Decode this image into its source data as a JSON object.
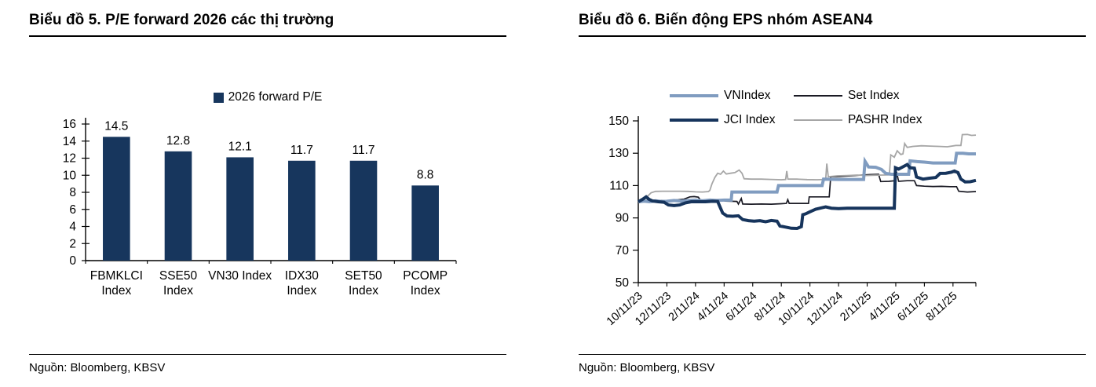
{
  "page": {
    "background": "#ffffff"
  },
  "chart_data": [
    {
      "type": "bar",
      "title": "Biểu đồ 5. P/E forward 2026 các thị trường",
      "source": "Nguồn: Bloomberg, KBSV",
      "legend": [
        "2026 forward P/E"
      ],
      "legend_position": "top",
      "bar_color": "#17365d",
      "grid": false,
      "ylim": [
        0,
        16
      ],
      "yticks": [
        0,
        2,
        4,
        6,
        8,
        10,
        12,
        14,
        16
      ],
      "categories": [
        "FBMKLCI\nIndex",
        "SSE50\nIndex",
        "VN30 Index",
        "IDX30\nIndex",
        "SET50\nIndex",
        "PCOMP\nIndex"
      ],
      "values": [
        14.5,
        12.8,
        12.1,
        11.7,
        11.7,
        8.8
      ],
      "xlabel": "",
      "ylabel": ""
    },
    {
      "type": "line",
      "title": "Biểu đồ 6. Biến động EPS nhóm ASEAN4",
      "source": "Nguồn: Bloomberg, KBSV",
      "legend_position": "top",
      "grid": false,
      "ylim": [
        50,
        150
      ],
      "yticks": [
        50,
        70,
        90,
        110,
        130,
        150
      ],
      "xlim": [
        0,
        23.6
      ],
      "x_unit": "months since 10/11/23",
      "xticks": [
        {
          "t": 0,
          "label": "10/11/23"
        },
        {
          "t": 2,
          "label": "12/11/23"
        },
        {
          "t": 4,
          "label": "2/11/24"
        },
        {
          "t": 6,
          "label": "4/11/24"
        },
        {
          "t": 8,
          "label": "6/11/24"
        },
        {
          "t": 10,
          "label": "8/11/24"
        },
        {
          "t": 12,
          "label": "10/11/24"
        },
        {
          "t": 14,
          "label": "12/11/24"
        },
        {
          "t": 16,
          "label": "2/11/25"
        },
        {
          "t": 18,
          "label": "4/11/25"
        },
        {
          "t": 20,
          "label": "6/11/25"
        },
        {
          "t": 22,
          "label": "8/11/25"
        }
      ],
      "series": [
        {
          "name": "VNIndex",
          "color": "#809cc0",
          "width": 4,
          "points": [
            [
              0,
              100
            ],
            [
              0.4,
              100.4
            ],
            [
              0.8,
              100
            ],
            [
              1.2,
              100.6
            ],
            [
              1.6,
              100.2
            ],
            [
              2,
              100.3
            ],
            [
              2.5,
              100.8
            ],
            [
              3,
              100.4
            ],
            [
              3.5,
              100.8
            ],
            [
              4,
              101
            ],
            [
              4.5,
              100.6
            ],
            [
              5,
              101
            ],
            [
              5.5,
              100.8
            ],
            [
              6,
              101
            ],
            [
              6.5,
              101
            ],
            [
              6.55,
              106
            ],
            [
              7.5,
              106
            ],
            [
              8.5,
              106
            ],
            [
              9.7,
              106
            ],
            [
              9.8,
              110
            ],
            [
              11,
              110
            ],
            [
              12,
              110
            ],
            [
              12.85,
              110
            ],
            [
              12.95,
              114
            ],
            [
              14,
              113.8
            ],
            [
              15,
              113.8
            ],
            [
              15.75,
              113.8
            ],
            [
              15.85,
              125
            ],
            [
              16.1,
              121.5
            ],
            [
              16.6,
              121.3
            ],
            [
              17,
              120
            ],
            [
              17.3,
              117.5
            ],
            [
              17.7,
              117
            ],
            [
              18.3,
              117
            ],
            [
              18.9,
              117
            ],
            [
              19,
              125.3
            ],
            [
              19.5,
              124.8
            ],
            [
              20,
              124.5
            ],
            [
              20.6,
              124
            ],
            [
              21.2,
              124
            ],
            [
              21.8,
              124
            ],
            [
              22.15,
              124
            ],
            [
              22.25,
              130
            ],
            [
              22.7,
              130
            ],
            [
              23.1,
              129.6
            ],
            [
              23.6,
              129.6
            ]
          ]
        },
        {
          "name": "Set Index",
          "color": "#1a1a24",
          "width": 1.7,
          "points": [
            [
              0,
              100
            ],
            [
              0.4,
              100.6
            ],
            [
              0.8,
              101
            ],
            [
              1.2,
              100.6
            ],
            [
              1.6,
              100.8
            ],
            [
              2,
              100.5
            ],
            [
              2.4,
              101
            ],
            [
              2.8,
              101.2
            ],
            [
              3.2,
              101.6
            ],
            [
              3.6,
              103
            ],
            [
              3.9,
              103.2
            ],
            [
              4.2,
              102.8
            ],
            [
              4.4,
              100.3
            ],
            [
              4.9,
              100.8
            ],
            [
              5.3,
              101.2
            ],
            [
              5.7,
              101
            ],
            [
              6.1,
              100.4
            ],
            [
              6.5,
              100.3
            ],
            [
              6.9,
              100.2
            ],
            [
              7,
              98.6
            ],
            [
              7.2,
              102
            ],
            [
              7.3,
              98.6
            ],
            [
              7.9,
              98.5
            ],
            [
              8.6,
              98.6
            ],
            [
              9.3,
              98.5
            ],
            [
              10,
              98.8
            ],
            [
              10.35,
              99
            ],
            [
              10.45,
              101.3
            ],
            [
              10.55,
              99
            ],
            [
              11.2,
              99
            ],
            [
              11.9,
              99
            ],
            [
              11.95,
              103
            ],
            [
              12.6,
              103
            ],
            [
              13.35,
              103
            ],
            [
              13.45,
              115.5
            ],
            [
              14.1,
              115.6
            ],
            [
              14.8,
              116
            ],
            [
              15.5,
              116.4
            ],
            [
              16.2,
              116.8
            ],
            [
              16.8,
              117
            ],
            [
              16.95,
              112.5
            ],
            [
              17.5,
              112.6
            ],
            [
              17.95,
              113
            ],
            [
              18.05,
              118.5
            ],
            [
              18.2,
              112.6
            ],
            [
              18.8,
              113
            ],
            [
              19.3,
              113
            ],
            [
              19.45,
              110
            ],
            [
              20,
              109.6
            ],
            [
              20.6,
              109.4
            ],
            [
              21.2,
              109.5
            ],
            [
              21.8,
              109.3
            ],
            [
              22.25,
              109.3
            ],
            [
              22.4,
              106.5
            ],
            [
              23,
              106
            ],
            [
              23.6,
              106.3
            ]
          ]
        },
        {
          "name": "JCI Index",
          "color": "#16345c",
          "width": 4,
          "points": [
            [
              0,
              100
            ],
            [
              0.3,
              101.5
            ],
            [
              0.55,
              103
            ],
            [
              0.75,
              101.5
            ],
            [
              1,
              100.5
            ],
            [
              1.4,
              100
            ],
            [
              1.8,
              99.7
            ],
            [
              2.1,
              98
            ],
            [
              2.5,
              97.6
            ],
            [
              2.9,
              98
            ],
            [
              3.3,
              99.3
            ],
            [
              3.7,
              100
            ],
            [
              4.2,
              100
            ],
            [
              4.7,
              100
            ],
            [
              5.2,
              100.3
            ],
            [
              5.55,
              100.2
            ],
            [
              5.7,
              97
            ],
            [
              5.9,
              93
            ],
            [
              6.2,
              91.2
            ],
            [
              6.6,
              91
            ],
            [
              7,
              91.3
            ],
            [
              7.3,
              89
            ],
            [
              7.7,
              88.3
            ],
            [
              8.1,
              88
            ],
            [
              8.5,
              88.3
            ],
            [
              8.9,
              87.6
            ],
            [
              9.3,
              88.4
            ],
            [
              9.7,
              88
            ],
            [
              9.9,
              85
            ],
            [
              10.3,
              84.3
            ],
            [
              10.7,
              83.6
            ],
            [
              11.1,
              83.5
            ],
            [
              11.4,
              84.6
            ],
            [
              11.5,
              92
            ],
            [
              11.7,
              92.5
            ],
            [
              12,
              93.8
            ],
            [
              12.4,
              95.4
            ],
            [
              12.8,
              96.2
            ],
            [
              13.1,
              96.8
            ],
            [
              13.5,
              96
            ],
            [
              14,
              95.8
            ],
            [
              14.6,
              96
            ],
            [
              15.3,
              96
            ],
            [
              16,
              96
            ],
            [
              16.7,
              96
            ],
            [
              17.4,
              96
            ],
            [
              17.9,
              96
            ],
            [
              17.98,
              121
            ],
            [
              18.2,
              120.2
            ],
            [
              18.5,
              121.6
            ],
            [
              18.8,
              123
            ],
            [
              19,
              121
            ],
            [
              19.3,
              120.8
            ],
            [
              19.45,
              115.3
            ],
            [
              19.9,
              114
            ],
            [
              20.3,
              114.5
            ],
            [
              20.8,
              115
            ],
            [
              21.1,
              117.5
            ],
            [
              21.5,
              117.6
            ],
            [
              21.9,
              118.3
            ],
            [
              22.1,
              119
            ],
            [
              22.35,
              118
            ],
            [
              22.55,
              114
            ],
            [
              22.85,
              112.3
            ],
            [
              23.2,
              112.4
            ],
            [
              23.6,
              113.2
            ]
          ]
        },
        {
          "name": "PASHR Index",
          "color": "#a6a6a6",
          "width": 1.8,
          "points": [
            [
              0,
              100
            ],
            [
              0.3,
              100.6
            ],
            [
              0.6,
              103
            ],
            [
              0.9,
              105.6
            ],
            [
              1.2,
              106.4
            ],
            [
              1.7,
              106.5
            ],
            [
              2.3,
              106.5
            ],
            [
              2.9,
              106.5
            ],
            [
              3.5,
              106.4
            ],
            [
              4,
              106.1
            ],
            [
              4.5,
              106
            ],
            [
              4.9,
              106.3
            ],
            [
              5,
              107
            ],
            [
              5.15,
              111
            ],
            [
              5.35,
              115
            ],
            [
              5.55,
              117.6
            ],
            [
              5.75,
              117
            ],
            [
              5.95,
              119
            ],
            [
              6.15,
              117.2
            ],
            [
              6.45,
              117.6
            ],
            [
              6.75,
              118
            ],
            [
              7.05,
              119.6
            ],
            [
              7.25,
              117.6
            ],
            [
              7.4,
              114.2
            ],
            [
              7.9,
              114
            ],
            [
              8.6,
              114
            ],
            [
              9.3,
              113.8
            ],
            [
              10,
              113.6
            ],
            [
              10.3,
              113.8
            ],
            [
              10.38,
              119
            ],
            [
              10.46,
              114
            ],
            [
              11.1,
              114
            ],
            [
              11.8,
              113.7
            ],
            [
              12.5,
              113.6
            ],
            [
              13.1,
              113.8
            ],
            [
              13.18,
              123.6
            ],
            [
              13.28,
              115.5
            ],
            [
              13.9,
              116
            ],
            [
              14.6,
              116.2
            ],
            [
              15.3,
              116.5
            ],
            [
              15.9,
              116.2
            ],
            [
              16.5,
              116.4
            ],
            [
              17.1,
              116.5
            ],
            [
              17.55,
              116.6
            ],
            [
              17.65,
              129
            ],
            [
              17.9,
              127.5
            ],
            [
              18.1,
              131.5
            ],
            [
              18.35,
              129.2
            ],
            [
              18.5,
              129.6
            ],
            [
              18.62,
              136
            ],
            [
              18.8,
              133.6
            ],
            [
              19.2,
              134.2
            ],
            [
              19.8,
              134.6
            ],
            [
              20.4,
              134.4
            ],
            [
              21,
              134.2
            ],
            [
              21.6,
              134
            ],
            [
              22.2,
              134.8
            ],
            [
              22.55,
              134.8
            ],
            [
              22.65,
              141.5
            ],
            [
              23,
              141.6
            ],
            [
              23.3,
              141
            ],
            [
              23.6,
              141.2
            ]
          ]
        }
      ]
    }
  ]
}
